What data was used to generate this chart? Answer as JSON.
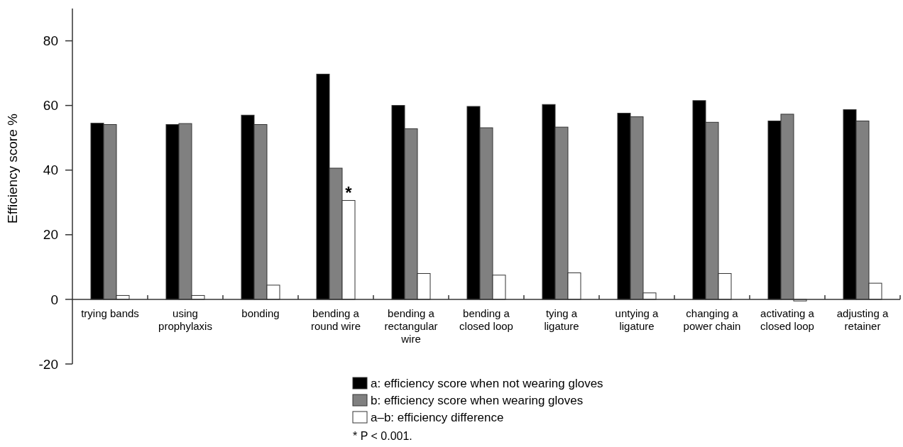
{
  "chart_data": {
    "type": "bar",
    "ylabel": "Efficiency score %",
    "categories": [
      "trying bands",
      "using prophylaxis",
      "bonding",
      "bending a round wire",
      "bending a rectangular wire",
      "bending a closed loop",
      "tying a ligature",
      "untying a ligature",
      "changing a power chain",
      "activating a closed loop",
      "adjusting a retainer"
    ],
    "series": [
      {
        "name": "a: efficiency score when not wearing gloves",
        "color": "#000000",
        "values": [
          54.5,
          54.1,
          57.0,
          69.7,
          60.0,
          59.7,
          60.3,
          57.6,
          61.5,
          55.2,
          58.7
        ]
      },
      {
        "name": "b: efficiency score when wearing gloves",
        "color": "#808080",
        "values": [
          54.1,
          54.4,
          54.1,
          40.6,
          52.8,
          53.1,
          53.3,
          56.5,
          54.8,
          57.3,
          55.2
        ]
      },
      {
        "name": "a–b: efficiency difference",
        "color": "#ffffff",
        "values": [
          1.2,
          1.2,
          4.4,
          30.6,
          8.0,
          7.5,
          8.2,
          2.0,
          8.0,
          -0.5,
          5.0
        ]
      }
    ],
    "ylim": [
      -20,
      90
    ],
    "yticks": [
      -20,
      0,
      20,
      40,
      60,
      80
    ],
    "grid": false,
    "legend": "bottom",
    "annotations": [
      "*",
      "* P < 0.001."
    ]
  }
}
